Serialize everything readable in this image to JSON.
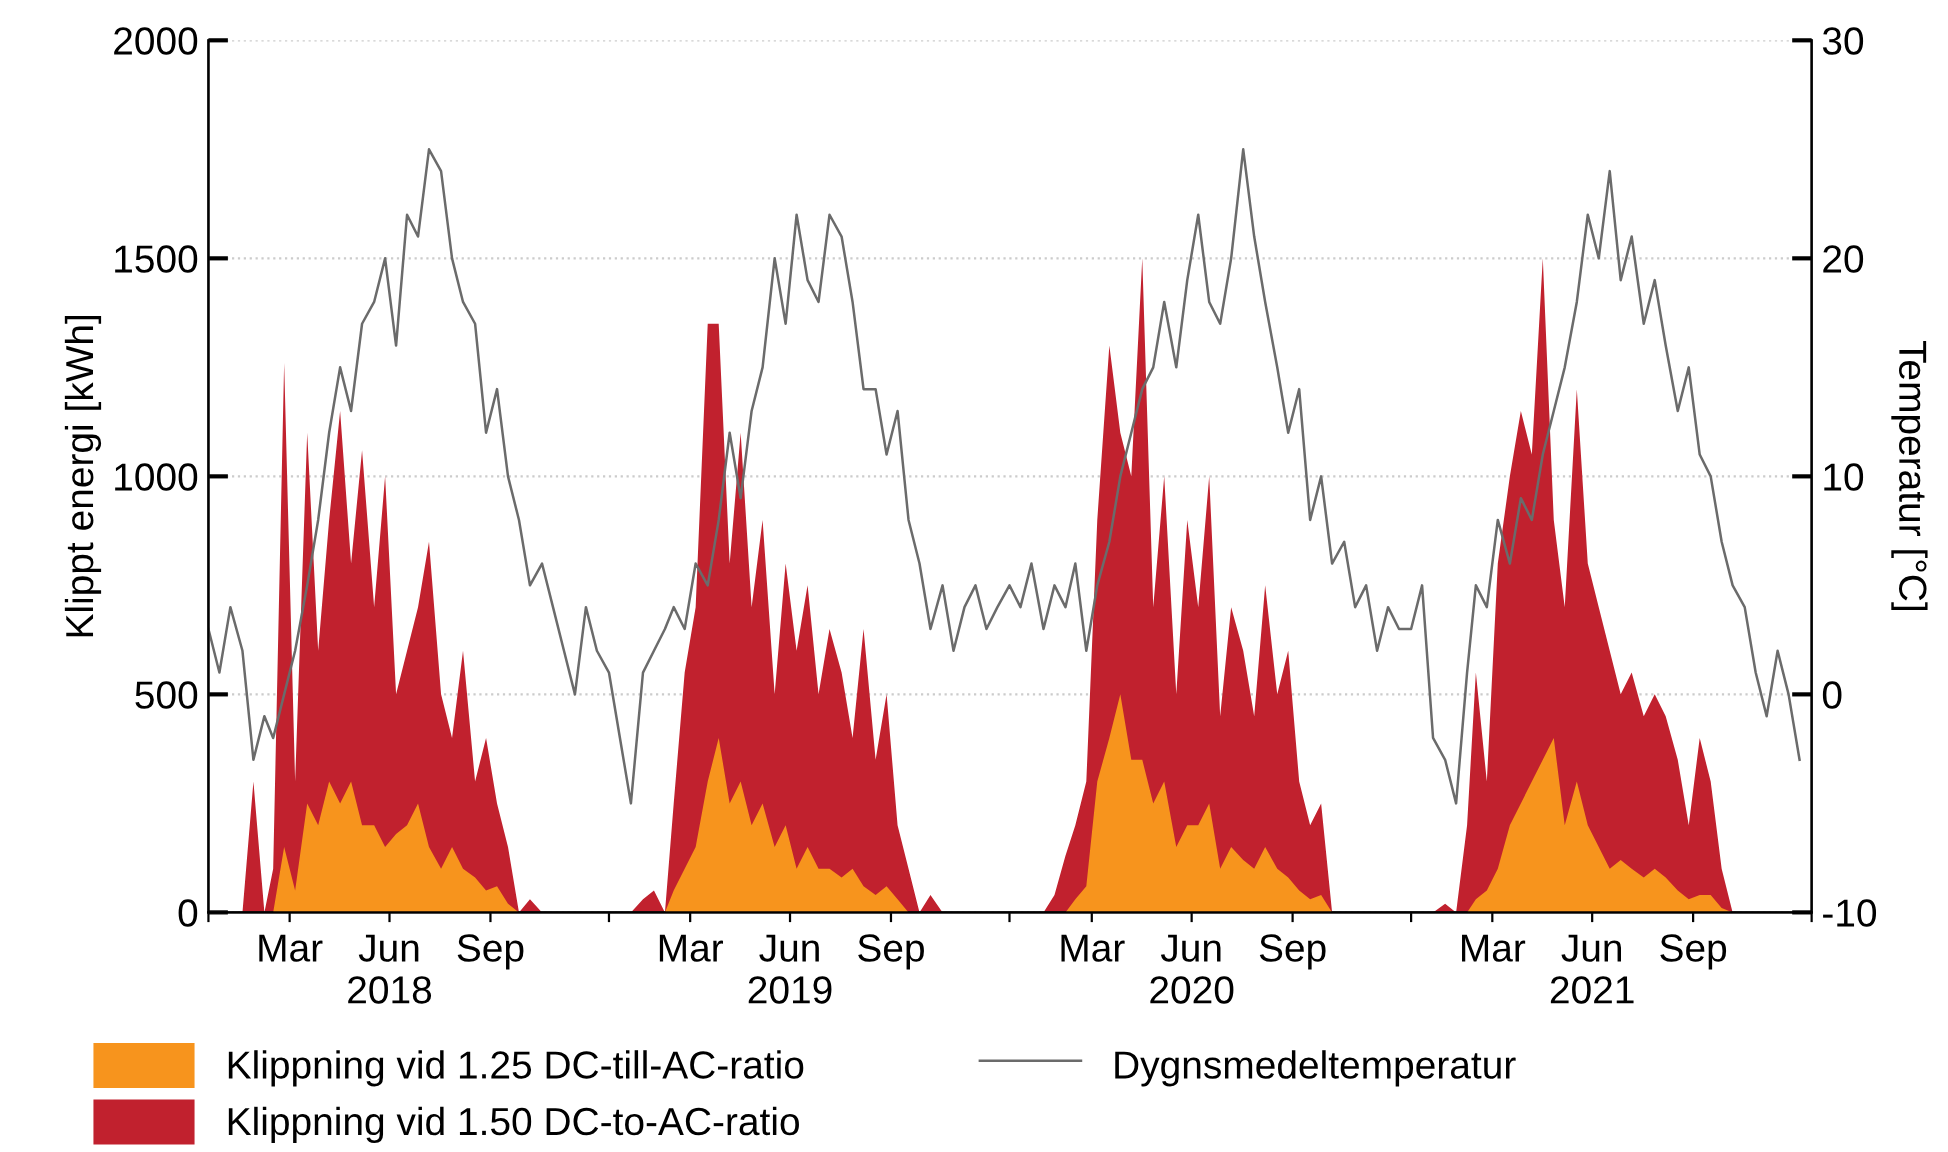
{
  "chart_data": {
    "type": "area",
    "ylabel": "Klippt energi [kWh]",
    "y2label": "Temperatur [°C]",
    "x": [
      "2018-01-01",
      "2018-01-11",
      "2018-01-21",
      "2018-02-01",
      "2018-02-11",
      "2018-02-21",
      "2018-03-01",
      "2018-03-11",
      "2018-03-21",
      "2018-04-01",
      "2018-04-11",
      "2018-04-21",
      "2018-05-01",
      "2018-05-11",
      "2018-05-21",
      "2018-06-01",
      "2018-06-11",
      "2018-06-21",
      "2018-07-01",
      "2018-07-11",
      "2018-07-21",
      "2018-08-01",
      "2018-08-11",
      "2018-08-21",
      "2018-09-01",
      "2018-09-11",
      "2018-09-21",
      "2018-10-01",
      "2018-10-11",
      "2018-10-21",
      "2018-11-01",
      "2018-11-11",
      "2018-11-21",
      "2018-12-01",
      "2018-12-11",
      "2018-12-21",
      "2019-01-01",
      "2019-01-11",
      "2019-01-21",
      "2019-02-01",
      "2019-02-11",
      "2019-02-21",
      "2019-03-01",
      "2019-03-11",
      "2019-03-21",
      "2019-04-01",
      "2019-04-11",
      "2019-04-21",
      "2019-05-01",
      "2019-05-11",
      "2019-05-21",
      "2019-06-01",
      "2019-06-11",
      "2019-06-21",
      "2019-07-01",
      "2019-07-11",
      "2019-07-21",
      "2019-08-01",
      "2019-08-11",
      "2019-08-21",
      "2019-09-01",
      "2019-09-11",
      "2019-09-21",
      "2019-10-01",
      "2019-10-11",
      "2019-10-21",
      "2019-11-01",
      "2019-11-11",
      "2019-11-21",
      "2019-12-01",
      "2019-12-11",
      "2019-12-21",
      "2020-01-01",
      "2020-01-11",
      "2020-01-21",
      "2020-02-01",
      "2020-02-11",
      "2020-02-21",
      "2020-03-01",
      "2020-03-11",
      "2020-03-21",
      "2020-04-01",
      "2020-04-11",
      "2020-04-21",
      "2020-05-01",
      "2020-05-11",
      "2020-05-21",
      "2020-06-01",
      "2020-06-11",
      "2020-06-21",
      "2020-07-01",
      "2020-07-11",
      "2020-07-21",
      "2020-08-01",
      "2020-08-11",
      "2020-08-21",
      "2020-09-01",
      "2020-09-11",
      "2020-09-21",
      "2020-10-01",
      "2020-10-11",
      "2020-10-21",
      "2020-11-01",
      "2020-11-11",
      "2020-11-21",
      "2020-12-01",
      "2020-12-11",
      "2020-12-21",
      "2021-01-01",
      "2021-01-11",
      "2021-01-21",
      "2021-02-01",
      "2021-02-11",
      "2021-02-21",
      "2021-03-01",
      "2021-03-11",
      "2021-03-21",
      "2021-04-01",
      "2021-04-11",
      "2021-04-21",
      "2021-05-01",
      "2021-05-11",
      "2021-05-21",
      "2021-06-01",
      "2021-06-11",
      "2021-06-21",
      "2021-07-01",
      "2021-07-11",
      "2021-07-21",
      "2021-08-01",
      "2021-08-11",
      "2021-08-21",
      "2021-09-01",
      "2021-09-11",
      "2021-09-21",
      "2021-10-01",
      "2021-10-11",
      "2021-10-21",
      "2021-11-01",
      "2021-11-11",
      "2021-11-21",
      "2021-12-01",
      "2021-12-11",
      "2021-12-21"
    ],
    "series": [
      {
        "name": "Klippning vid 1.25 DC-till-AC-ratio",
        "color": "#f7941d",
        "values": [
          0,
          0,
          0,
          0,
          0,
          0,
          0,
          150,
          50,
          250,
          200,
          300,
          250,
          300,
          200,
          200,
          150,
          180,
          200,
          250,
          150,
          100,
          150,
          100,
          80,
          50,
          60,
          20,
          0,
          0,
          0,
          0,
          0,
          0,
          0,
          0,
          0,
          0,
          0,
          0,
          0,
          0,
          50,
          100,
          150,
          300,
          400,
          250,
          300,
          200,
          250,
          150,
          200,
          100,
          150,
          100,
          100,
          80,
          100,
          60,
          40,
          60,
          30,
          0,
          0,
          0,
          0,
          0,
          0,
          0,
          0,
          0,
          0,
          0,
          0,
          0,
          0,
          0,
          30,
          60,
          300,
          400,
          500,
          350,
          350,
          250,
          300,
          150,
          200,
          200,
          250,
          100,
          150,
          120,
          100,
          150,
          100,
          80,
          50,
          30,
          40,
          0,
          0,
          0,
          0,
          0,
          0,
          0,
          0,
          0,
          0,
          0,
          0,
          0,
          30,
          50,
          100,
          200,
          250,
          300,
          350,
          400,
          200,
          300,
          200,
          150,
          100,
          120,
          100,
          80,
          100,
          80,
          50,
          30,
          40,
          40,
          10,
          0,
          0,
          0,
          0,
          0,
          0,
          0
        ]
      },
      {
        "name": "Klippning vid 1.50 DC-to-AC-ratio",
        "color": "#c1212e",
        "values": [
          0,
          0,
          0,
          0,
          300,
          0,
          100,
          1260,
          300,
          1100,
          600,
          900,
          1150,
          800,
          1060,
          700,
          1000,
          500,
          600,
          700,
          850,
          500,
          400,
          600,
          300,
          400,
          250,
          150,
          0,
          30,
          0,
          0,
          0,
          0,
          0,
          0,
          0,
          0,
          0,
          30,
          50,
          0,
          250,
          550,
          700,
          1350,
          1350,
          800,
          1100,
          700,
          900,
          500,
          800,
          600,
          750,
          500,
          650,
          550,
          400,
          650,
          350,
          500,
          200,
          100,
          0,
          40,
          0,
          0,
          0,
          0,
          0,
          0,
          0,
          0,
          0,
          0,
          40,
          130,
          200,
          300,
          900,
          1300,
          1100,
          1000,
          1500,
          700,
          1000,
          500,
          900,
          700,
          1000,
          450,
          700,
          600,
          450,
          750,
          500,
          600,
          300,
          200,
          250,
          0,
          0,
          0,
          0,
          0,
          0,
          0,
          0,
          0,
          0,
          20,
          0,
          200,
          550,
          300,
          800,
          1000,
          1150,
          1050,
          1500,
          900,
          700,
          1200,
          800,
          700,
          600,
          500,
          550,
          450,
          500,
          450,
          350,
          200,
          400,
          300,
          100,
          0,
          0,
          0,
          0,
          0,
          0,
          0
        ]
      },
      {
        "name": "Dygnsmedeltemperatur",
        "color": "#6b6b6b",
        "type": "line",
        "axis": "y2",
        "values": [
          3,
          1,
          4,
          2,
          -3,
          -1,
          -2,
          0,
          2,
          5,
          8,
          12,
          15,
          13,
          17,
          18,
          20,
          16,
          22,
          21,
          25,
          24,
          20,
          18,
          17,
          12,
          14,
          10,
          8,
          5,
          6,
          4,
          2,
          0,
          4,
          2,
          1,
          -2,
          -5,
          1,
          2,
          3,
          4,
          3,
          6,
          5,
          8,
          12,
          9,
          13,
          15,
          20,
          17,
          22,
          19,
          18,
          22,
          21,
          18,
          14,
          14,
          11,
          13,
          8,
          6,
          3,
          5,
          2,
          4,
          5,
          3,
          4,
          5,
          4,
          6,
          3,
          5,
          4,
          6,
          2,
          5,
          7,
          10,
          12,
          14,
          15,
          18,
          15,
          19,
          22,
          18,
          17,
          20,
          25,
          21,
          18,
          15,
          12,
          14,
          8,
          10,
          6,
          7,
          4,
          5,
          2,
          4,
          3,
          3,
          5,
          -2,
          -3,
          -5,
          1,
          5,
          4,
          8,
          6,
          9,
          8,
          11,
          13,
          15,
          18,
          22,
          20,
          24,
          19,
          21,
          17,
          19,
          16,
          13,
          15,
          11,
          10,
          7,
          5,
          4,
          1,
          -1,
          2,
          0,
          -3
        ]
      }
    ],
    "ylim": [
      0,
      2000
    ],
    "yticks": [
      0,
      500,
      1000,
      1500,
      2000
    ],
    "y2lim": [
      -10,
      30
    ],
    "y2ticks": [
      -10,
      0,
      10,
      20,
      30
    ],
    "xlim": [
      "2018-01-01",
      "2022-01-01"
    ],
    "xticks": [
      {
        "value": "2018-01-01",
        "label": null
      },
      {
        "value": "2018-03-16",
        "label": "Mar"
      },
      {
        "value": "2018-06-15",
        "label": "Jun\n2018"
      },
      {
        "value": "2018-09-15",
        "label": "Sep"
      },
      {
        "value": "2019-01-01",
        "label": null
      },
      {
        "value": "2019-03-16",
        "label": "Mar"
      },
      {
        "value": "2019-06-15",
        "label": "Jun\n2019"
      },
      {
        "value": "2019-09-15",
        "label": "Sep"
      },
      {
        "value": "2020-01-01",
        "label": null
      },
      {
        "value": "2020-03-16",
        "label": "Mar"
      },
      {
        "value": "2020-06-15",
        "label": "Jun\n2020"
      },
      {
        "value": "2020-09-15",
        "label": "Sep"
      },
      {
        "value": "2021-01-01",
        "label": null
      },
      {
        "value": "2021-03-16",
        "label": "Mar"
      },
      {
        "value": "2021-06-15",
        "label": "Jun\n2021"
      },
      {
        "value": "2021-09-15",
        "label": "Sep"
      },
      {
        "value": "2022-01-01",
        "label": null
      }
    ],
    "grid": "y",
    "legend": "bottom"
  }
}
